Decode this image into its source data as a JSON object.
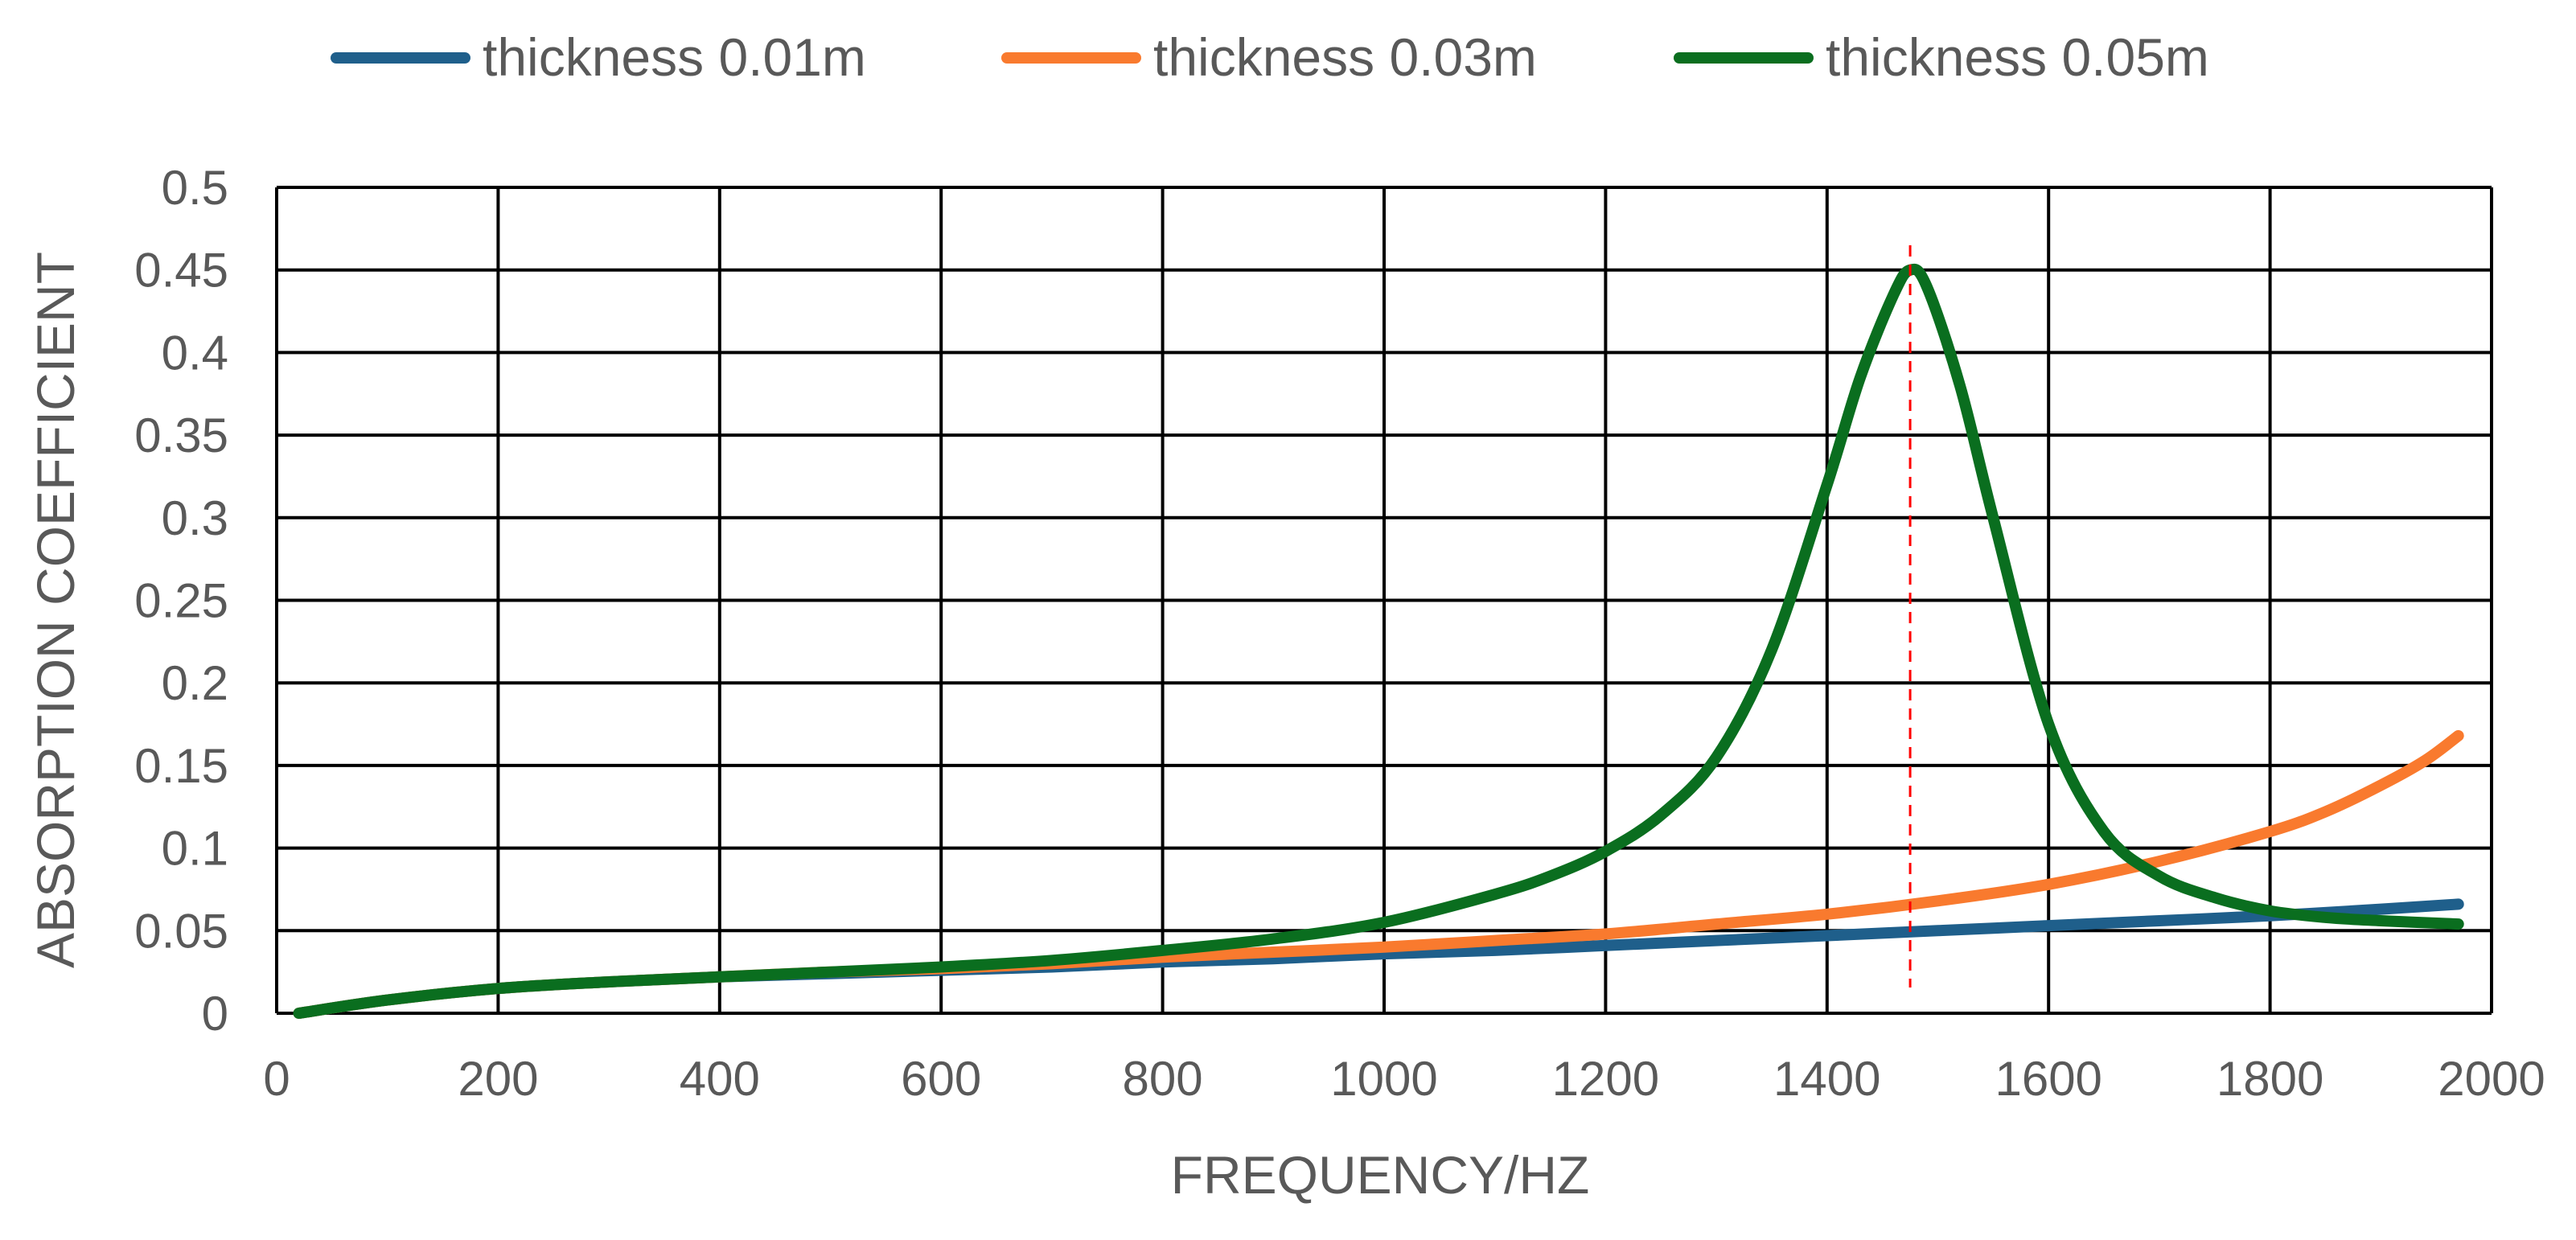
{
  "chart_data": {
    "type": "line",
    "xlabel": "FREQUENCY/HZ",
    "ylabel": "ABSORPTION COEFFICIENT",
    "xlim": [
      0,
      2000
    ],
    "ylim": [
      0,
      0.5
    ],
    "x_ticks": [
      0,
      200,
      400,
      600,
      800,
      1000,
      1200,
      1400,
      1600,
      1800,
      2000
    ],
    "y_ticks": [
      0,
      0.05,
      0.1,
      0.15,
      0.2,
      0.25,
      0.3,
      0.35,
      0.4,
      0.45,
      0.5
    ],
    "x_tick_labels": [
      "0",
      "200",
      "400",
      "600",
      "800",
      "1000",
      "1200",
      "1400",
      "1600",
      "1800",
      "2000"
    ],
    "y_tick_labels": [
      "0",
      "0.05",
      "0.1",
      "0.15",
      "0.2",
      "0.25",
      "0.3",
      "0.35",
      "0.4",
      "0.45",
      "0.5"
    ],
    "grid": true,
    "legend_position": "top",
    "reference_line": {
      "x": 1475,
      "style": "dashed",
      "color": "#FF0000"
    },
    "series": [
      {
        "name": "thickness 0.01m",
        "color": "#1F5F8B",
        "x": [
          20,
          100,
          200,
          300,
          400,
          500,
          600,
          700,
          800,
          900,
          1000,
          1100,
          1200,
          1300,
          1400,
          1500,
          1600,
          1700,
          1800,
          1900,
          1970
        ],
        "y": [
          0,
          0.008,
          0.015,
          0.019,
          0.022,
          0.024,
          0.026,
          0.028,
          0.031,
          0.033,
          0.036,
          0.038,
          0.041,
          0.044,
          0.047,
          0.05,
          0.053,
          0.056,
          0.059,
          0.063,
          0.066
        ]
      },
      {
        "name": "thickness 0.03m",
        "color": "#F97A2E",
        "x": [
          20,
          100,
          200,
          300,
          400,
          500,
          600,
          700,
          800,
          900,
          1000,
          1100,
          1200,
          1300,
          1400,
          1500,
          1600,
          1700,
          1800,
          1850,
          1900,
          1940,
          1970
        ],
        "y": [
          0,
          0.008,
          0.015,
          0.019,
          0.022,
          0.025,
          0.027,
          0.03,
          0.034,
          0.037,
          0.04,
          0.044,
          0.048,
          0.054,
          0.06,
          0.068,
          0.078,
          0.092,
          0.11,
          0.122,
          0.138,
          0.153,
          0.168
        ]
      },
      {
        "name": "thickness 0.05m",
        "color": "#0A6E1F",
        "x": [
          20,
          100,
          200,
          300,
          400,
          500,
          600,
          700,
          800,
          900,
          1000,
          1100,
          1150,
          1200,
          1250,
          1300,
          1350,
          1400,
          1430,
          1460,
          1475,
          1490,
          1520,
          1550,
          1600,
          1650,
          1700,
          1750,
          1800,
          1850,
          1900,
          1970
        ],
        "y": [
          0,
          0.008,
          0.015,
          0.019,
          0.022,
          0.025,
          0.028,
          0.032,
          0.038,
          0.045,
          0.055,
          0.072,
          0.083,
          0.098,
          0.12,
          0.155,
          0.22,
          0.32,
          0.385,
          0.435,
          0.45,
          0.44,
          0.38,
          0.3,
          0.175,
          0.11,
          0.083,
          0.07,
          0.062,
          0.058,
          0.056,
          0.054
        ]
      }
    ]
  }
}
